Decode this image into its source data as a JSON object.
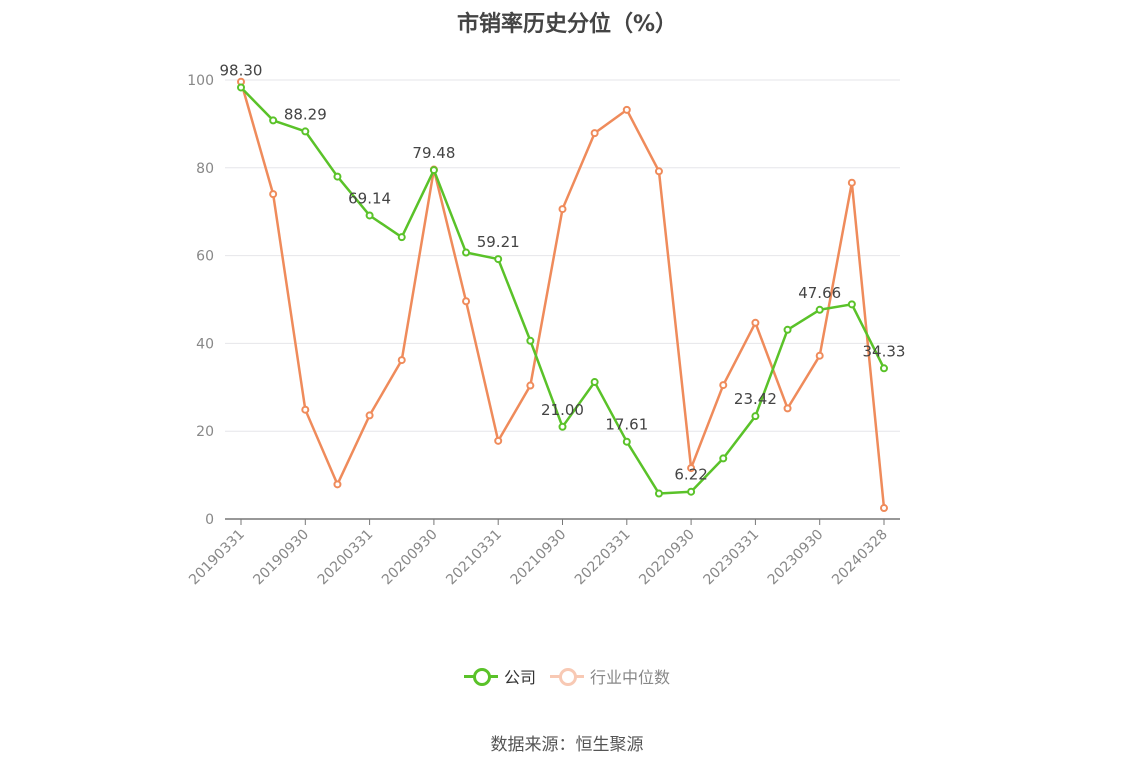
{
  "title": "市销率历史分位（%）",
  "source": "数据来源：恒生聚源",
  "legend": [
    {
      "label": "公司",
      "color": "#5ac229"
    },
    {
      "label": "行业中位数",
      "color": "#f0a182"
    }
  ],
  "chart_data": {
    "type": "line",
    "title": "市销率历史分位（%）",
    "ylim": [
      0,
      100
    ],
    "yticks": [
      0,
      20,
      40,
      60,
      80,
      100
    ],
    "grid": true,
    "legend_position": "bottom",
    "x_tick_labels": [
      "20190331",
      "20190930",
      "20200331",
      "20200930",
      "20210331",
      "20210930",
      "20220331",
      "20220930",
      "20230331",
      "20230930",
      "20240328"
    ],
    "x": [
      "20190331",
      "20190630",
      "20190930",
      "20191231",
      "20200331",
      "20200630",
      "20200930",
      "20201231",
      "20210331",
      "20210630",
      "20210930",
      "20211231",
      "20220331",
      "20220630",
      "20220930",
      "20221231",
      "20230331",
      "20230630",
      "20230930",
      "20231231",
      "20240328"
    ],
    "series": [
      {
        "name": "公司",
        "color": "#5ac229",
        "values": [
          98.3,
          90.8,
          88.29,
          78.0,
          69.14,
          64.2,
          79.48,
          60.7,
          59.21,
          40.6,
          21.0,
          31.2,
          17.61,
          5.8,
          6.22,
          13.8,
          23.42,
          43.1,
          47.66,
          48.9,
          34.33
        ],
        "labels": {
          "0": "98.30",
          "2": "88.29",
          "4": "69.14",
          "6": "79.48",
          "8": "59.21",
          "10": "21.00",
          "12": "17.61",
          "14": "6.22",
          "16": "23.42",
          "18": "47.66",
          "20": "34.33"
        }
      },
      {
        "name": "行业中位数",
        "color": "#ef8b5b",
        "values": [
          99.6,
          74.0,
          24.9,
          7.9,
          23.6,
          36.2,
          79.6,
          49.6,
          17.8,
          30.4,
          70.6,
          87.9,
          93.2,
          79.2,
          11.6,
          30.5,
          44.7,
          25.2,
          37.2,
          76.6,
          2.5
        ]
      }
    ]
  }
}
